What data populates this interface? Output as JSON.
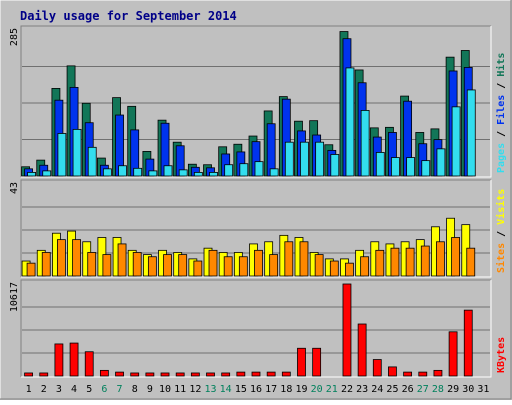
{
  "chart_data": {
    "type": "bar",
    "title": "Daily usage for September 2014",
    "categories": [
      "1",
      "2",
      "3",
      "4",
      "5",
      "6",
      "7",
      "8",
      "9",
      "10",
      "11",
      "12",
      "13",
      "14",
      "15",
      "16",
      "17",
      "18",
      "19",
      "20",
      "21",
      "22",
      "23",
      "24",
      "25",
      "26",
      "27",
      "28",
      "29",
      "30",
      "31"
    ],
    "weekend_days": [
      "6",
      "7",
      "13",
      "14",
      "20",
      "21",
      "27",
      "28"
    ],
    "legend_position": "right, vertical",
    "grid": true,
    "colors": {
      "hits": "#127658",
      "files": "#0033ee",
      "pages": "#33ddee",
      "visits": "#ffff00",
      "sites": "#ff8800",
      "kbytes": "#ff0000",
      "title": "#000088",
      "weekday_label": "#000000",
      "weekend_label": "#00805c",
      "panel_bg": "#c0c0c0"
    },
    "panels": [
      {
        "ymax_label": "285",
        "ylim": [
          0,
          285
        ],
        "legend": [
          "Pages",
          "Files",
          "Hits"
        ],
        "series": [
          {
            "name": "Hits",
            "values": [
              18,
              31,
              171,
              215,
              142,
              35,
              153,
              136,
              48,
              109,
              66,
              23,
              22,
              57,
              62,
              78,
              127,
              155,
              107,
              108,
              61,
              282,
              207,
              94,
              95,
              156,
              85,
              92,
              232,
              245,
              0
            ]
          },
          {
            "name": "Files",
            "values": [
              14,
              21,
              148,
              173,
              104,
              21,
              119,
              90,
              33,
              103,
              59,
              17,
              16,
              43,
              47,
              67,
              102,
              150,
              88,
              80,
              50,
              268,
              182,
              76,
              85,
              146,
              63,
              71,
              205,
              212,
              0
            ]
          },
          {
            "name": "Pages",
            "values": [
              7,
              10,
              83,
              91,
              56,
              14,
              20,
              15,
              10,
              20,
              12,
              7,
              7,
              22,
              24,
              28,
              14,
              66,
              66,
              66,
              42,
              211,
              128,
              46,
              36,
              36,
              30,
              53,
              135,
              168,
              0
            ]
          }
        ]
      },
      {
        "ymax_label": "43",
        "ylim": [
          0,
          43
        ],
        "legend": [
          "Sites",
          "Visits"
        ],
        "series": [
          {
            "name": "Visits",
            "values": [
              7,
              12,
              20,
              21,
              16,
              18,
              18,
              12,
              10,
              12,
              11,
              8,
              13,
              11,
              11,
              15,
              16,
              19,
              18,
              11,
              8,
              8,
              12,
              16,
              15,
              16,
              17,
              23,
              27,
              24,
              0
            ]
          },
          {
            "name": "Sites",
            "values": [
              6,
              11,
              17,
              17,
              11,
              10,
              15,
              11,
              9,
              10,
              10,
              7,
              12,
              9,
              9,
              12,
              10,
              16,
              16,
              10,
              7,
              6,
              9,
              12,
              13,
              13,
              14,
              16,
              18,
              13,
              0
            ]
          }
        ]
      },
      {
        "ymax_label": "10617",
        "ylim": [
          0,
          10617
        ],
        "legend": [
          "KBytes"
        ],
        "series": [
          {
            "name": "KBytes",
            "values": [
              350,
              350,
              3700,
              3800,
              2800,
              650,
              450,
              350,
              350,
              350,
              350,
              350,
              350,
              350,
              450,
              450,
              450,
              450,
              3200,
              3200,
              0,
              10617,
              6000,
              1900,
              1050,
              450,
              450,
              650,
              5100,
              7600,
              0
            ]
          }
        ]
      }
    ]
  }
}
